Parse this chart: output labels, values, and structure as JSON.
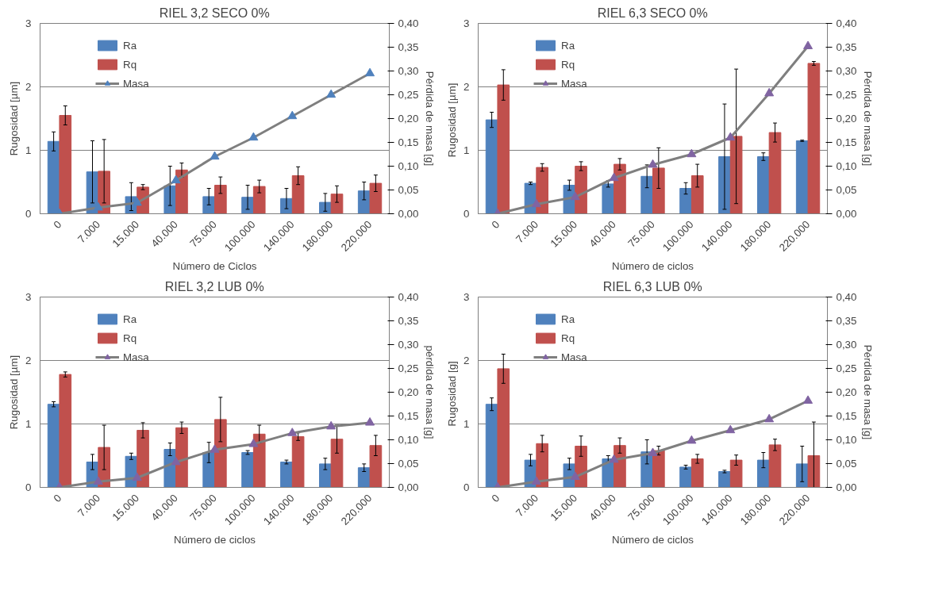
{
  "chart_data": [
    {
      "type": "bar",
      "title": "RIEL 3,2 SECO 0%",
      "xlabel": "Número de Ciclos",
      "ylabel": "Rugosidad [µm]",
      "y2label": "Pérdida de masa [g]",
      "categories": [
        "0",
        "7.000",
        "15.000",
        "40.000",
        "75.000",
        "100.000",
        "140.000",
        "180.000",
        "220.000"
      ],
      "ylim": [
        0,
        3
      ],
      "yticks": [
        0,
        1,
        2,
        3
      ],
      "y2lim": [
        0,
        0.4
      ],
      "y2ticks": [
        {
          "value": 0,
          "label": "0,00"
        },
        {
          "value": 0.05,
          "label": "0,05"
        },
        {
          "value": 0.1,
          "label": "0,10"
        },
        {
          "value": 0.15,
          "label": "0,15"
        },
        {
          "value": 0.2,
          "label": "0,20"
        },
        {
          "value": 0.25,
          "label": "0,25"
        },
        {
          "value": 0.3,
          "label": "0,30"
        },
        {
          "value": 0.35,
          "label": "0,35"
        },
        {
          "value": 0.4,
          "label": "0,40"
        }
      ],
      "grid": "y",
      "legend": "top left",
      "series": [
        {
          "name": "Ra",
          "color": "#4f81bd",
          "values": [
            1.14,
            0.66,
            0.27,
            0.44,
            0.27,
            0.26,
            0.24,
            0.18,
            0.36
          ],
          "errors": [
            0.15,
            0.49,
            0.22,
            0.31,
            0.13,
            0.19,
            0.16,
            0.14,
            0.14
          ]
        },
        {
          "name": "Rq",
          "color": "#c0504d",
          "values": [
            1.55,
            0.67,
            0.42,
            0.69,
            0.45,
            0.43,
            0.6,
            0.31,
            0.48
          ],
          "errors": [
            0.15,
            0.5,
            0.04,
            0.11,
            0.13,
            0.1,
            0.14,
            0.13,
            0.13
          ]
        },
        {
          "name": "Masa",
          "type": "line",
          "axis": "y2",
          "marker": "triangle",
          "color": "#7f7f7f",
          "colors": [
            "#4f81bd",
            "#4f81bd",
            "#4f81bd",
            "#4f81bd",
            "#4f81bd",
            "#4f81bd",
            "#4f81bd",
            "#4f81bd",
            "#4f81bd"
          ],
          "values": [
            0,
            0.013,
            0.023,
            0.07,
            0.12,
            0.16,
            0.205,
            0.25,
            0.295
          ]
        }
      ]
    },
    {
      "type": "bar",
      "title": "RIEL 6,3 SECO 0%",
      "xlabel": "Número de ciclos",
      "ylabel": "Rugosidad  [µm]",
      "y2label": "Pérdida de masa [g]",
      "categories": [
        "0",
        "7.000",
        "15.000",
        "40.000",
        "75.000",
        "100.000",
        "140.000",
        "180.000",
        "220.000"
      ],
      "ylim": [
        0,
        3
      ],
      "yticks": [
        0,
        1,
        2,
        3
      ],
      "y2lim": [
        0,
        0.4
      ],
      "y2ticks": [
        {
          "value": 0,
          "label": "0,00"
        },
        {
          "value": 0.05,
          "label": "0,05"
        },
        {
          "value": 0.1,
          "label": "0,10"
        },
        {
          "value": 0.15,
          "label": "0,15"
        },
        {
          "value": 0.2,
          "label": "0,20"
        },
        {
          "value": 0.25,
          "label": "0,25"
        },
        {
          "value": 0.3,
          "label": "0,30"
        },
        {
          "value": 0.35,
          "label": "0,35"
        },
        {
          "value": 0.4,
          "label": "0,40"
        }
      ],
      "grid": "y",
      "legend": "top left",
      "series": [
        {
          "name": "Ra",
          "color": "#4f81bd",
          "values": [
            1.48,
            0.48,
            0.45,
            0.47,
            0.59,
            0.4,
            0.9,
            0.9,
            1.15
          ],
          "errors": [
            0.12,
            0.02,
            0.08,
            0.05,
            0.18,
            0.09,
            0.83,
            0.06,
            0.01
          ]
        },
        {
          "name": "Rq",
          "color": "#c0504d",
          "values": [
            2.03,
            0.73,
            0.75,
            0.78,
            0.72,
            0.6,
            1.22,
            1.28,
            2.37
          ],
          "errors": [
            0.24,
            0.06,
            0.07,
            0.09,
            0.32,
            0.18,
            1.06,
            0.15,
            0.03
          ]
        },
        {
          "name": "Masa",
          "type": "line",
          "axis": "y2",
          "marker": "triangle",
          "color": "#7f7f7f",
          "colors": [
            "#8064a2",
            "#8064a2",
            "#8064a2",
            "#8064a2",
            "#8064a2",
            "#8064a2",
            "#8064a2",
            "#8064a2",
            "#8064a2"
          ],
          "values": [
            0,
            0.02,
            0.035,
            0.075,
            0.103,
            0.125,
            0.16,
            0.253,
            0.352
          ]
        }
      ]
    },
    {
      "type": "bar",
      "title": "RIEL 3,2 LUB 0%",
      "xlabel": "Número de ciclos",
      "ylabel": "Rugosidad [µm]",
      "y2label": "pérdida de masa [g]",
      "categories": [
        "0",
        "7.000",
        "15.000",
        "40.000",
        "75.000",
        "100.000",
        "140.000",
        "180.000",
        "220.000"
      ],
      "ylim": [
        0,
        3
      ],
      "yticks": [
        0,
        1,
        2,
        3
      ],
      "y2lim": [
        0,
        0.4
      ],
      "y2ticks": [
        {
          "value": 0,
          "label": "0,00"
        },
        {
          "value": 0.05,
          "label": "0,05"
        },
        {
          "value": 0.1,
          "label": "0,10"
        },
        {
          "value": 0.15,
          "label": "0,15"
        },
        {
          "value": 0.2,
          "label": "0,20"
        },
        {
          "value": 0.25,
          "label": "0,25"
        },
        {
          "value": 0.3,
          "label": "0,30"
        },
        {
          "value": 0.35,
          "label": "0,35"
        },
        {
          "value": 0.4,
          "label": "0,40"
        }
      ],
      "grid": "y",
      "legend": "top left",
      "series": [
        {
          "name": "Ra",
          "color": "#4f81bd",
          "values": [
            1.31,
            0.4,
            0.49,
            0.6,
            0.55,
            0.55,
            0.4,
            0.37,
            0.31
          ],
          "errors": [
            0.04,
            0.12,
            0.05,
            0.1,
            0.16,
            0.03,
            0.03,
            0.09,
            0.06
          ]
        },
        {
          "name": "Rq",
          "color": "#c0504d",
          "values": [
            1.78,
            0.63,
            0.9,
            0.94,
            1.07,
            0.84,
            0.8,
            0.76,
            0.66
          ],
          "errors": [
            0.04,
            0.35,
            0.12,
            0.09,
            0.35,
            0.14,
            0.06,
            0.22,
            0.16
          ]
        },
        {
          "name": "Masa",
          "type": "line",
          "axis": "y2",
          "marker": "triangle",
          "color": "#7f7f7f",
          "colors": [
            "#8064a2",
            "#8064a2",
            "#8064a2",
            "#8064a2",
            "#8064a2",
            "#8064a2",
            "#8064a2",
            "#8064a2",
            "#8064a2"
          ],
          "values": [
            0,
            0.012,
            0.02,
            0.053,
            0.079,
            0.091,
            0.114,
            0.128,
            0.136
          ]
        }
      ]
    },
    {
      "type": "bar",
      "title": "RIEL 6,3 LUB 0%",
      "xlabel": "Número de ciclos",
      "ylabel": "Rugosidad  [g]",
      "y2label": "Pérdida de masa [g]",
      "categories": [
        "0",
        "7.000",
        "15.000",
        "40.000",
        "75.000",
        "100.000",
        "140.000",
        "180.000",
        "220.000"
      ],
      "ylim": [
        0,
        3
      ],
      "yticks": [
        0,
        1,
        2,
        3
      ],
      "y2lim": [
        0,
        0.4
      ],
      "y2ticks": [
        {
          "value": 0,
          "label": "0,00"
        },
        {
          "value": 0.05,
          "label": "0,05"
        },
        {
          "value": 0.1,
          "label": "0,10"
        },
        {
          "value": 0.15,
          "label": "0,15"
        },
        {
          "value": 0.2,
          "label": "0,20"
        },
        {
          "value": 0.25,
          "label": "0,25"
        },
        {
          "value": 0.3,
          "label": "0,30"
        },
        {
          "value": 0.35,
          "label": "0,35"
        },
        {
          "value": 0.4,
          "label": "0,40"
        }
      ],
      "grid": "y",
      "legend": "top left",
      "series": [
        {
          "name": "Ra",
          "color": "#4f81bd",
          "values": [
            1.31,
            0.43,
            0.37,
            0.45,
            0.56,
            0.32,
            0.25,
            0.43,
            0.37
          ],
          "errors": [
            0.1,
            0.09,
            0.09,
            0.05,
            0.19,
            0.03,
            0.02,
            0.12,
            0.28
          ]
        },
        {
          "name": "Rq",
          "color": "#c0504d",
          "values": [
            1.87,
            0.69,
            0.65,
            0.66,
            0.58,
            0.45,
            0.43,
            0.67,
            0.5
          ],
          "errors": [
            0.23,
            0.13,
            0.16,
            0.12,
            0.07,
            0.07,
            0.08,
            0.09,
            0.53
          ]
        },
        {
          "name": "Masa",
          "type": "line",
          "axis": "y2",
          "marker": "triangle",
          "color": "#7f7f7f",
          "colors": [
            "#8064a2",
            "#8064a2",
            "#8064a2",
            "#8064a2",
            "#8064a2",
            "#8064a2",
            "#8064a2",
            "#8064a2",
            "#8064a2"
          ],
          "values": [
            0,
            0.012,
            0.022,
            0.058,
            0.072,
            0.098,
            0.12,
            0.143,
            0.182
          ]
        }
      ]
    }
  ]
}
